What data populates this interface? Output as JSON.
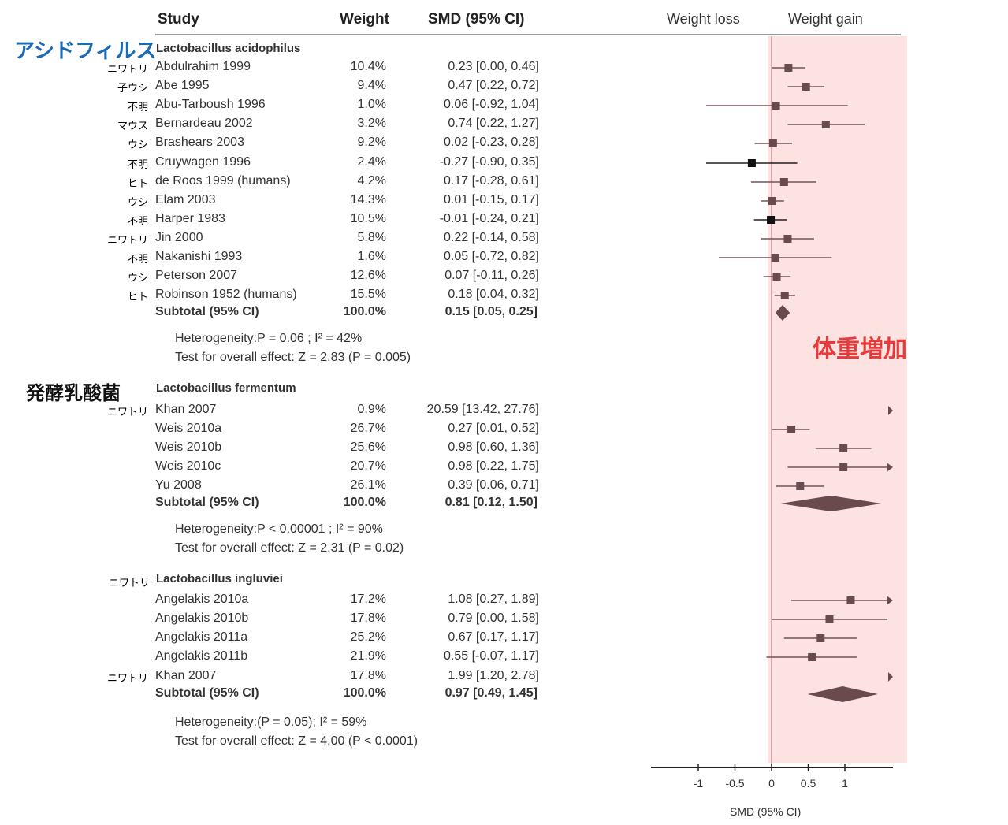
{
  "header": {
    "study": "Study",
    "weight": "Weight",
    "smd": "SMD (95% CI)",
    "weight_loss": "Weight loss",
    "weight_gain": "Weight gain"
  },
  "annotations": {
    "region_label": "体重増加",
    "region_color": "#fde2e2"
  },
  "colors": {
    "marker": "#6b4a4e",
    "marker_black": "#111111",
    "jp_blue": "#1a6bb5",
    "jp_red": "#e63b3b"
  },
  "chart_data": {
    "type": "forest",
    "title": "",
    "xlabel": "SMD (95% CI)",
    "x_ticks": [
      -1,
      -0.5,
      0,
      0.5,
      1
    ],
    "x_tick_labels": [
      "-1",
      "-0.5",
      "0",
      "0.5",
      "1"
    ],
    "xlim": [
      -1.65,
      1.65
    ],
    "left_label": "Weight loss",
    "right_label": "Weight gain",
    "groups": [
      {
        "jp_label": "アシドフィルス",
        "name": "Lactobacillus acidophilus",
        "studies": [
          {
            "jp": "ニワトリ",
            "study": "Abdulrahim 1999",
            "weight": "10.4%",
            "ci_text": "0.23 [0.00, 0.46]",
            "smd": 0.23,
            "lo": 0.0,
            "hi": 0.46
          },
          {
            "jp": "子ウシ",
            "study": "Abe 1995",
            "weight": "9.4%",
            "ci_text": "0.47 [0.22, 0.72]",
            "smd": 0.47,
            "lo": 0.22,
            "hi": 0.72
          },
          {
            "jp": "不明",
            "study": "Abu-Tarboush 1996",
            "weight": "1.0%",
            "ci_text": "0.06 [-0.92, 1.04]",
            "smd": 0.06,
            "lo": -0.92,
            "hi": 1.04
          },
          {
            "jp": "マウス",
            "study": "Bernardeau 2002",
            "weight": "3.2%",
            "ci_text": "0.74 [0.22, 1.27]",
            "smd": 0.74,
            "lo": 0.22,
            "hi": 1.27
          },
          {
            "jp": "ウシ",
            "study": "Brashears 2003",
            "weight": "9.2%",
            "ci_text": "0.02 [-0.23, 0.28]",
            "smd": 0.02,
            "lo": -0.23,
            "hi": 0.28
          },
          {
            "jp": "不明",
            "study": "Cruywagen 1996",
            "weight": "2.4%",
            "ci_text": "-0.27 [-0.90, 0.35]",
            "smd": -0.27,
            "lo": -0.9,
            "hi": 0.35
          },
          {
            "jp": "ヒト",
            "study": "de Roos 1999 (humans)",
            "weight": "4.2%",
            "ci_text": "0.17 [-0.28, 0.61]",
            "smd": 0.17,
            "lo": -0.28,
            "hi": 0.61
          },
          {
            "jp": "ウシ",
            "study": "Elam 2003",
            "weight": "14.3%",
            "ci_text": "0.01 [-0.15, 0.17]",
            "smd": 0.01,
            "lo": -0.15,
            "hi": 0.17
          },
          {
            "jp": "不明",
            "study": "Harper 1983",
            "weight": "10.5%",
            "ci_text": "-0.01 [-0.24, 0.21]",
            "smd": -0.01,
            "lo": -0.24,
            "hi": 0.21
          },
          {
            "jp": "ニワトリ",
            "study": "Jin 2000",
            "weight": "5.8%",
            "ci_text": "0.22 [-0.14, 0.58]",
            "smd": 0.22,
            "lo": -0.14,
            "hi": 0.58
          },
          {
            "jp": "不明",
            "study": "Nakanishi 1993",
            "weight": "1.6%",
            "ci_text": "0.05 [-0.72, 0.82]",
            "smd": 0.05,
            "lo": -0.72,
            "hi": 0.82
          },
          {
            "jp": "ウシ",
            "study": "Peterson 2007",
            "weight": "12.6%",
            "ci_text": "0.07 [-0.11, 0.26]",
            "smd": 0.07,
            "lo": -0.11,
            "hi": 0.26
          },
          {
            "jp": "ヒト",
            "study": "Robinson 1952 (humans)",
            "weight": "15.5%",
            "ci_text": "0.18 [0.04, 0.32]",
            "smd": 0.18,
            "lo": 0.04,
            "hi": 0.32
          }
        ],
        "subtotal": {
          "label": "Subtotal (95% CI)",
          "weight": "100.0%",
          "ci_text": "0.15 [0.05, 0.25]",
          "smd": 0.15,
          "lo": 0.05,
          "hi": 0.25
        },
        "heterogeneity": "Heterogeneity:P = 0.06 ; I² = 42%",
        "overall": "Test for overall effect: Z = 2.83 (P = 0.005)"
      },
      {
        "jp_label": "発酵乳酸菌",
        "name": "Lactobacillus fermentum",
        "studies": [
          {
            "jp": "ニワトリ",
            "study": "Khan 2007",
            "weight": "0.9%",
            "ci_text": "20.59 [13.42, 27.76]",
            "smd": 20.59,
            "lo": 13.42,
            "hi": 27.76
          },
          {
            "jp": "",
            "study": "Weis 2010a",
            "weight": "26.7%",
            "ci_text": "0.27 [0.01, 0.52]",
            "smd": 0.27,
            "lo": 0.01,
            "hi": 0.52
          },
          {
            "jp": "",
            "study": "Weis 2010b",
            "weight": "25.6%",
            "ci_text": "0.98 [0.60, 1.36]",
            "smd": 0.98,
            "lo": 0.6,
            "hi": 1.36
          },
          {
            "jp": "",
            "study": "Weis 2010c",
            "weight": "20.7%",
            "ci_text": "0.98 [0.22, 1.75]",
            "smd": 0.98,
            "lo": 0.22,
            "hi": 1.75
          },
          {
            "jp": "",
            "study": "Yu 2008",
            "weight": "26.1%",
            "ci_text": "0.39 [0.06, 0.71]",
            "smd": 0.39,
            "lo": 0.06,
            "hi": 0.71
          }
        ],
        "subtotal": {
          "label": "Subtotal (95% CI)",
          "weight": "100.0%",
          "ci_text": "0.81 [0.12, 1.50]",
          "smd": 0.81,
          "lo": 0.12,
          "hi": 1.5
        },
        "heterogeneity": "Heterogeneity:P < 0.00001 ; I² = 90%",
        "overall": "Test for overall effect: Z = 2.31 (P = 0.02)"
      },
      {
        "jp_label": "ニワトリ",
        "name": "Lactobacillus ingluviei",
        "studies": [
          {
            "jp": "",
            "study": "Angelakis 2010a",
            "weight": "17.2%",
            "ci_text": "1.08 [0.27, 1.89]",
            "smd": 1.08,
            "lo": 0.27,
            "hi": 1.89
          },
          {
            "jp": "",
            "study": "Angelakis 2010b",
            "weight": "17.8%",
            "ci_text": "0.79 [0.00, 1.58]",
            "smd": 0.79,
            "lo": 0.0,
            "hi": 1.58
          },
          {
            "jp": "",
            "study": "Angelakis 2011a",
            "weight": "25.2%",
            "ci_text": "0.67 [0.17, 1.17]",
            "smd": 0.67,
            "lo": 0.17,
            "hi": 1.17
          },
          {
            "jp": "",
            "study": "Angelakis 2011b",
            "weight": "21.9%",
            "ci_text": "0.55 [-0.07, 1.17]",
            "smd": 0.55,
            "lo": -0.07,
            "hi": 1.17
          },
          {
            "jp": "ニワトリ",
            "study": "Khan 2007",
            "weight": "17.8%",
            "ci_text": "1.99 [1.20, 2.78]",
            "smd": 1.99,
            "lo": 1.2,
            "hi": 2.78
          }
        ],
        "subtotal": {
          "label": "Subtotal (95% CI)",
          "weight": "100.0%",
          "ci_text": "0.97 [0.49, 1.45]",
          "smd": 0.97,
          "lo": 0.49,
          "hi": 1.45
        },
        "heterogeneity": "Heterogeneity:(P = 0.05); I² = 59%",
        "overall": "Test for overall effect: Z = 4.00 (P < 0.0001)"
      }
    ]
  }
}
